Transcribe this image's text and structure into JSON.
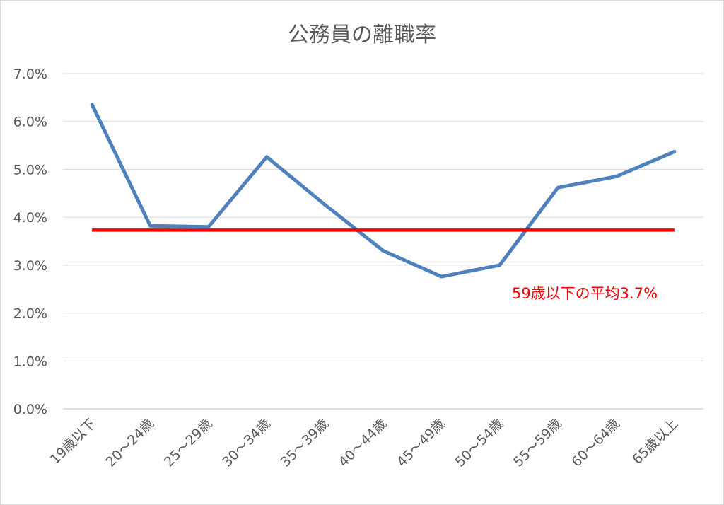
{
  "chart_data": {
    "type": "line",
    "title": "公務員の離職率",
    "categories": [
      "19歳以下",
      "20～24歳",
      "25～29歳",
      "30～34歳",
      "35～39歳",
      "40～44歳",
      "45～49歳",
      "50～54歳",
      "55～59歳",
      "60～64歳",
      "65歳以上"
    ],
    "series": [
      {
        "values": [
          6.35,
          3.82,
          3.8,
          5.26,
          4.26,
          3.3,
          2.76,
          3.0,
          4.62,
          4.85,
          5.37
        ],
        "color": "#4f81bd"
      }
    ],
    "reference_line": {
      "value": 3.73,
      "color": "#ff0000",
      "label": "59歳以下の平均3.7%"
    },
    "yticks": [
      "0.0%",
      "1.0%",
      "2.0%",
      "3.0%",
      "4.0%",
      "5.0%",
      "6.0%",
      "7.0%"
    ],
    "ylim": [
      0,
      7
    ],
    "grid": true,
    "xlabel": "",
    "ylabel": ""
  }
}
